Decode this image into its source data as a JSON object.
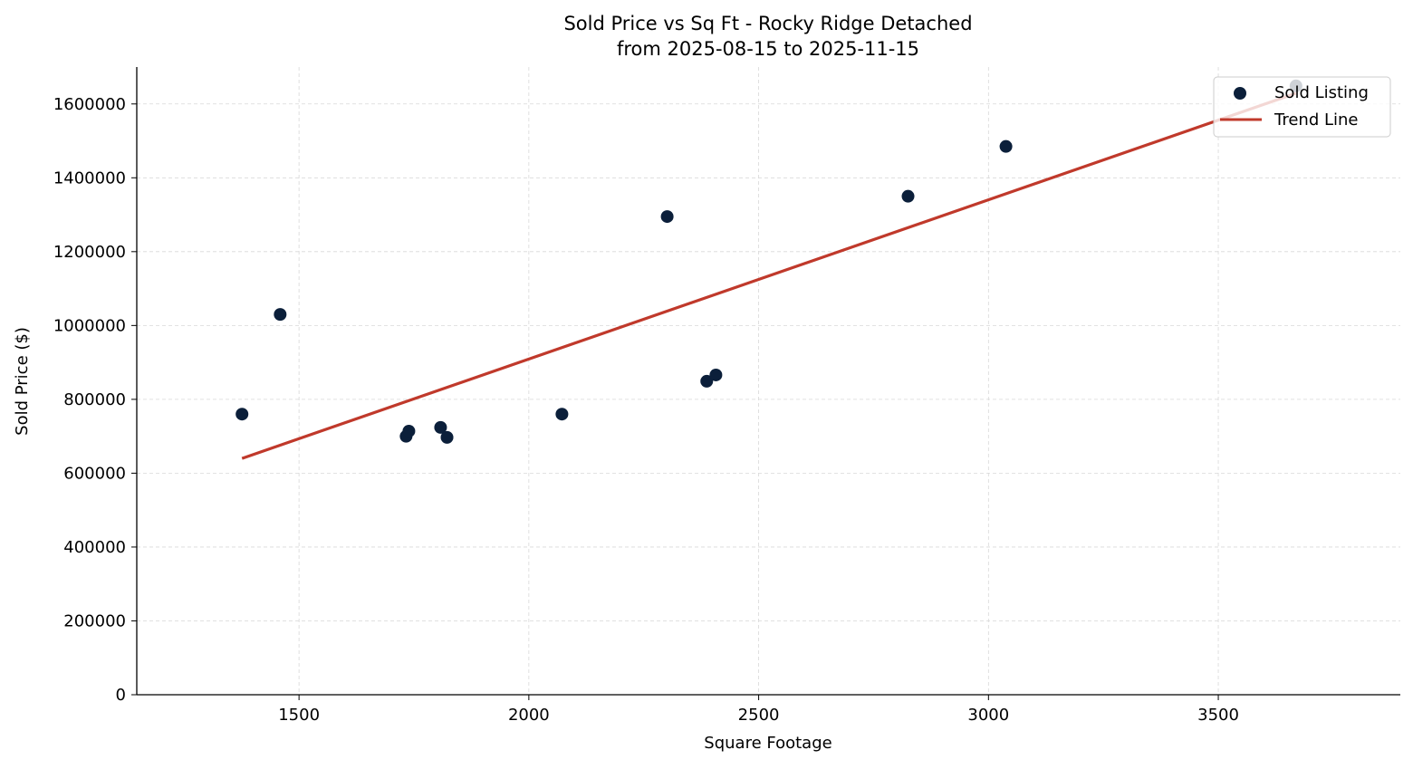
{
  "chart_data": {
    "type": "scatter",
    "title": "Sold Price vs Sq Ft - Rocky Ridge Detached",
    "subtitle": "from 2025-08-15 to 2025-11-15",
    "xlabel": "Square Footage",
    "ylabel": "Sold Price ($)",
    "xlim": [
      1147,
      3896
    ],
    "ylim": [
      0,
      1700000
    ],
    "xticks": [
      1500,
      2000,
      2500,
      3000,
      3500
    ],
    "yticks": [
      0,
      200000,
      400000,
      600000,
      800000,
      1000000,
      1200000,
      1400000,
      1600000
    ],
    "grid": true,
    "legend_position": "top-right",
    "series": [
      {
        "name": "Sold Listing",
        "kind": "scatter",
        "color": "#0b1f3a",
        "points": [
          {
            "x": 1376,
            "y": 760000
          },
          {
            "x": 1459,
            "y": 1030000
          },
          {
            "x": 1733,
            "y": 700000
          },
          {
            "x": 1739,
            "y": 714000
          },
          {
            "x": 1808,
            "y": 724000
          },
          {
            "x": 1822,
            "y": 697000
          },
          {
            "x": 2072,
            "y": 760000
          },
          {
            "x": 2301,
            "y": 1295000
          },
          {
            "x": 2387,
            "y": 849000
          },
          {
            "x": 2407,
            "y": 866000
          },
          {
            "x": 2825,
            "y": 1350000
          },
          {
            "x": 3038,
            "y": 1485000
          },
          {
            "x": 3669,
            "y": 1649000
          }
        ]
      },
      {
        "name": "Trend Line",
        "kind": "line",
        "color": "#c0392b",
        "points": [
          {
            "x": 1376,
            "y": 640000
          },
          {
            "x": 3669,
            "y": 1629000
          }
        ]
      }
    ]
  }
}
